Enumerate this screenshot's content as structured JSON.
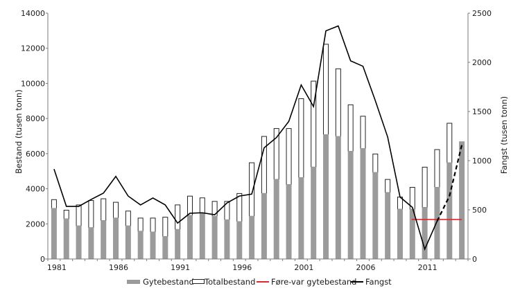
{
  "chart_data": {
    "type": "bar",
    "subtype": "stacked bar with line overlay (dual axis)",
    "title": "",
    "xlabel": "",
    "ylabel": "Bestand (tusen tonn)",
    "ylabel_right": "Fangst (tusen tonn)",
    "ylim": [
      0,
      14000
    ],
    "ylim_right": [
      0,
      2500
    ],
    "yticks": [
      0,
      2000,
      4000,
      6000,
      8000,
      10000,
      12000,
      14000
    ],
    "yticks_right": [
      0,
      500,
      1000,
      1500,
      2000,
      2500
    ],
    "xtick_labels": [
      "1981",
      "1986",
      "1991",
      "1996",
      "2001",
      "2006",
      "2011"
    ],
    "grid": false,
    "legend_position": "bottom",
    "categories": [
      1981,
      1982,
      1983,
      1984,
      1985,
      1986,
      1987,
      1988,
      1989,
      1990,
      1991,
      1992,
      1993,
      1994,
      1995,
      1996,
      1997,
      1998,
      1999,
      2000,
      2001,
      2002,
      2003,
      2004,
      2005,
      2006,
      2007,
      2008,
      2009,
      2010,
      2011,
      2012,
      2013,
      2014
    ],
    "series": [
      {
        "name": "Gytebestand",
        "type": "bar",
        "axis": "left",
        "color": "#9b9b9b",
        "values": [
          2900,
          2300,
          1900,
          1800,
          2200,
          2350,
          1900,
          1600,
          1550,
          1300,
          1700,
          2500,
          2600,
          2450,
          2250,
          2150,
          2450,
          3750,
          4550,
          4250,
          4650,
          5250,
          7100,
          7000,
          6150,
          6300,
          4950,
          3800,
          2850,
          2850,
          2950,
          4100,
          5500,
          6700
        ]
      },
      {
        "name": "Totalbestand",
        "type": "bar",
        "axis": "left",
        "color": "#ffffff",
        "values": [
          3400,
          2800,
          3100,
          3350,
          3450,
          3250,
          2750,
          2350,
          2350,
          2400,
          3100,
          3600,
          3500,
          3300,
          3300,
          3750,
          5500,
          7000,
          7450,
          7450,
          9150,
          10150,
          12250,
          10850,
          8800,
          8150,
          6000,
          4550,
          3550,
          4100,
          5250,
          6250,
          7750,
          null
        ]
      },
      {
        "name": "Føre-var gytebestand",
        "type": "line",
        "axis": "left",
        "color": "#e3262b",
        "x_range": [
          2010,
          2014
        ],
        "value": 2250
      },
      {
        "name": "Fangst",
        "type": "line",
        "axis": "right",
        "color": "#000000",
        "values": [
          915,
          535,
          535,
          605,
          670,
          840,
          640,
          550,
          620,
          550,
          365,
          465,
          470,
          450,
          570,
          640,
          660,
          1130,
          1235,
          1400,
          1770,
          1550,
          2320,
          2370,
          2015,
          1960,
          1610,
          1240,
          630,
          525,
          100,
          385,
          640,
          1160
        ],
        "dashed_from": 2012
      }
    ]
  },
  "legend": {
    "items": [
      {
        "label": "Gytebestand",
        "swatch": "bar-grey"
      },
      {
        "label": "Totalbestand",
        "swatch": "bar-outline"
      },
      {
        "label": "Føre-var gytebestand",
        "swatch": "line-red"
      },
      {
        "label": "Fangst",
        "swatch": "line-black"
      }
    ]
  },
  "colors": {
    "grey_bar": "#9b9b9b",
    "bar_outline": "#222222",
    "axis": "#7a7a7a",
    "precaution_line": "#e3262b",
    "catch_line": "#000000"
  }
}
